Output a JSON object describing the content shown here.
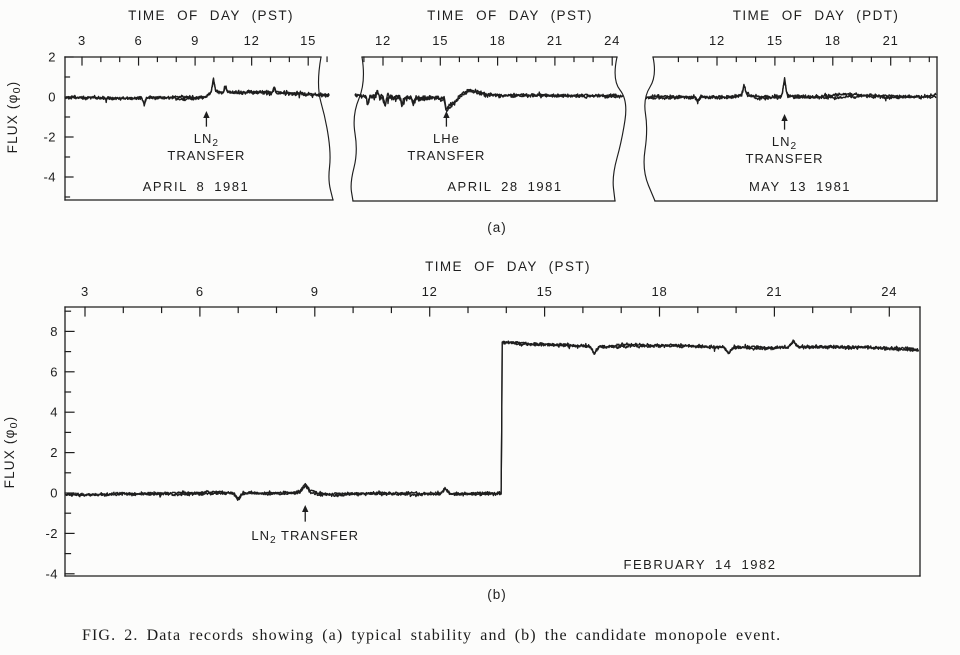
{
  "page": {
    "background": "#fcfcfb",
    "ink": "#1e1e1e"
  },
  "figure": {
    "caption": "FIG. 2.  Data records showing (a) typical stability and (b) the candidate monopole event.",
    "row_a_label": "(a)",
    "row_b_label": "(b)"
  },
  "chart_data": [
    {
      "id": "april-8-1981",
      "type": "line",
      "row": "a",
      "title": "TIME OF DAY (PST)",
      "ylabel": "FLUX (φ₀)",
      "date": "APRIL 8 1981",
      "x_ticks": [
        3,
        6,
        9,
        12,
        15
      ],
      "x_minor_step": 1,
      "x_range": [
        2.1,
        16.1
      ],
      "y_ticks": [
        2,
        0,
        -2,
        -4
      ],
      "y_minor_step": 1,
      "y_range": [
        -5.15,
        2.0
      ],
      "show_y_axis": true,
      "torn_left": false,
      "torn_right": true,
      "noise": [
        [
          2.1,
          0.11
        ],
        [
          9.9,
          0.13
        ]
      ],
      "trace_mean": [
        [
          2.1,
          -0.03
        ],
        [
          9.5,
          -0.03
        ],
        [
          9.75,
          0.12
        ],
        [
          10.0,
          0.35
        ],
        [
          10.25,
          0.22
        ],
        [
          12.0,
          0.2
        ],
        [
          14.0,
          0.16
        ],
        [
          16.1,
          0.14
        ]
      ],
      "spikes": [
        [
          6.3,
          -0.35
        ],
        [
          9.97,
          0.55
        ],
        [
          10.6,
          0.3
        ],
        [
          13.2,
          0.3
        ]
      ],
      "annotation": {
        "lines": [
          "LN₂",
          "TRANSFER"
        ],
        "arrow_time": 9.6
      }
    },
    {
      "id": "april-28-1981",
      "type": "line",
      "row": "a",
      "title": "TIME OF DAY (PST)",
      "ylabel": "",
      "date": "APRIL 28 1981",
      "x_ticks": [
        12,
        15,
        18,
        21,
        24
      ],
      "x_minor_step": 1,
      "x_range": [
        10.4,
        24.7
      ],
      "y_ticks": [],
      "y_minor_step": 1,
      "y_range": [
        -5.15,
        2.0
      ],
      "show_y_axis": false,
      "torn_left": true,
      "torn_right": true,
      "noise": [
        [
          10.4,
          0.17
        ],
        [
          14.6,
          0.12
        ]
      ],
      "trace_mean": [
        [
          10.4,
          0.1
        ],
        [
          12.0,
          0.0
        ],
        [
          14.8,
          0.0
        ],
        [
          15.2,
          -0.05
        ],
        [
          15.32,
          -0.62
        ],
        [
          15.5,
          -0.42
        ],
        [
          15.75,
          -0.28
        ],
        [
          16.1,
          0.12
        ],
        [
          16.45,
          0.3
        ],
        [
          16.8,
          0.28
        ],
        [
          17.3,
          0.12
        ],
        [
          19.0,
          0.1
        ],
        [
          22.0,
          0.08
        ],
        [
          24.7,
          0.06
        ]
      ],
      "spikes": [
        [
          11.2,
          -0.4
        ],
        [
          12.1,
          -0.45
        ],
        [
          13.0,
          -0.35
        ],
        [
          13.6,
          -0.3
        ],
        [
          11.7,
          0.25
        ]
      ],
      "annotation": {
        "lines": [
          "LHe",
          "TRANSFER"
        ],
        "arrow_time": 15.32
      }
    },
    {
      "id": "may-13-1981",
      "type": "line",
      "row": "a",
      "title": "TIME OF DAY (PDT)",
      "ylabel": "",
      "date": "MAY 13 1981",
      "x_ticks": [
        12,
        15,
        18,
        21
      ],
      "x_minor_step": 1,
      "x_range": [
        9.3,
        23.4
      ],
      "y_ticks": [],
      "y_minor_step": 1,
      "y_range": [
        -5.15,
        2.0
      ],
      "show_y_axis": false,
      "torn_left": true,
      "torn_right": false,
      "noise": [
        [
          9.3,
          0.12
        ]
      ],
      "trace_mean": [
        [
          9.3,
          0.0
        ],
        [
          12.6,
          0.04
        ],
        [
          13.25,
          0.1
        ],
        [
          13.45,
          0.28
        ],
        [
          13.7,
          0.12
        ],
        [
          14.2,
          0.02
        ],
        [
          15.3,
          0.03
        ],
        [
          15.5,
          0.45
        ],
        [
          15.7,
          0.08
        ],
        [
          16.2,
          0.0
        ],
        [
          20.0,
          0.03
        ],
        [
          23.4,
          0.0
        ]
      ],
      "spikes": [
        [
          13.4,
          0.35
        ],
        [
          15.5,
          0.45
        ],
        [
          11.0,
          -0.25
        ]
      ],
      "annotation": {
        "lines": [
          "LN₂",
          "TRANSFER"
        ],
        "arrow_time": 15.5
      }
    },
    {
      "id": "february-14-1982",
      "type": "line",
      "row": "b",
      "title": "TIME OF DAY (PST)",
      "ylabel": "FLUX (φ₀)",
      "date": "FEBRUARY 14 1982",
      "x_ticks": [
        3,
        6,
        9,
        12,
        15,
        18,
        21,
        24
      ],
      "x_minor_step": 1,
      "x_range": [
        2.5,
        24.8
      ],
      "y_ticks": [
        8,
        6,
        4,
        2,
        0,
        -2,
        -4
      ],
      "y_minor_step": 1,
      "y_range": [
        -4.1,
        9.2
      ],
      "show_y_axis": true,
      "torn_left": false,
      "torn_right": false,
      "step_event": {
        "time": 13.88,
        "from": -0.05,
        "to": 7.45
      },
      "noise": [
        [
          2.5,
          0.1
        ],
        [
          13.9,
          0.11
        ]
      ],
      "trace_mean": [
        [
          2.5,
          -0.07
        ],
        [
          8.4,
          -0.05
        ],
        [
          8.75,
          0.15
        ],
        [
          9.1,
          -0.06
        ],
        [
          13.2,
          -0.04
        ],
        [
          13.87,
          -0.04
        ],
        [
          13.89,
          7.45
        ],
        [
          14.6,
          7.4
        ],
        [
          15.8,
          7.3
        ],
        [
          16.6,
          7.25
        ],
        [
          17.6,
          7.32
        ],
        [
          19.0,
          7.25
        ],
        [
          20.5,
          7.18
        ],
        [
          22.0,
          7.22
        ],
        [
          23.5,
          7.15
        ],
        [
          24.8,
          7.1
        ]
      ],
      "spikes": [
        [
          7.0,
          -0.3
        ],
        [
          8.75,
          0.25
        ],
        [
          12.4,
          0.25
        ],
        [
          16.3,
          -0.35
        ],
        [
          19.8,
          -0.3
        ],
        [
          21.5,
          0.3
        ]
      ],
      "annotation": {
        "lines": [
          "LN₂ TRANSFER"
        ],
        "arrow_time": 8.75
      }
    }
  ]
}
